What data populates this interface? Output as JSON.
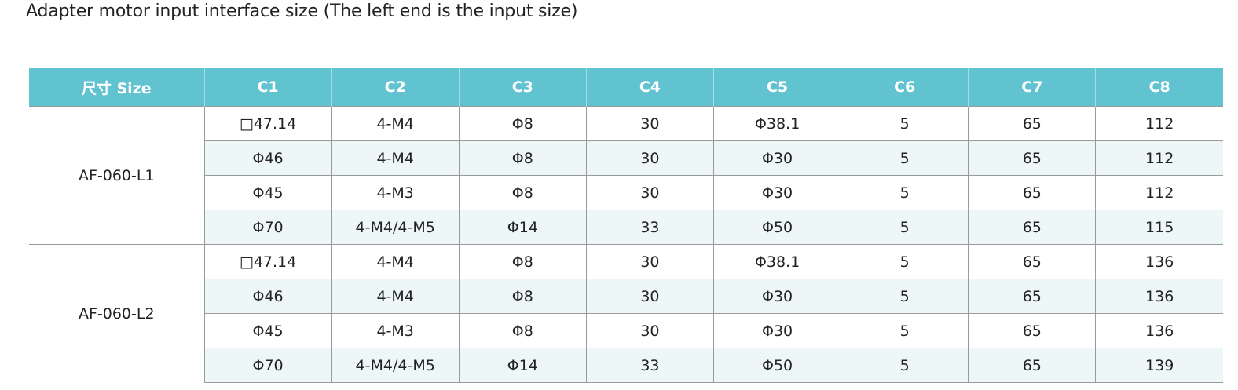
{
  "title": "Adapter motor input interface size (The left end is the input size)",
  "table": {
    "header": [
      "尺寸 Size",
      "C1",
      "C2",
      "C3",
      "C4",
      "C5",
      "C6",
      "C7",
      "C8"
    ],
    "groups": [
      {
        "label": "AF-060-L1",
        "rows": [
          [
            "□47.14",
            "4-M4",
            "Φ8",
            "30",
            "Φ38.1",
            "5",
            "65",
            "112"
          ],
          [
            "Φ46",
            "4-M4",
            "Φ8",
            "30",
            "Φ30",
            "5",
            "65",
            "112"
          ],
          [
            "Φ45",
            "4-M3",
            "Φ8",
            "30",
            "Φ30",
            "5",
            "65",
            "112"
          ],
          [
            "Φ70",
            "4-M4/4-M5",
            "Φ14",
            "33",
            "Φ50",
            "5",
            "65",
            "115"
          ]
        ]
      },
      {
        "label": "AF-060-L2",
        "rows": [
          [
            "□47.14",
            "4-M4",
            "Φ8",
            "30",
            "Φ38.1",
            "5",
            "65",
            "136"
          ],
          [
            "Φ46",
            "4-M4",
            "Φ8",
            "30",
            "Φ30",
            "5",
            "65",
            "136"
          ],
          [
            "Φ45",
            "4-M3",
            "Φ8",
            "30",
            "Φ30",
            "5",
            "65",
            "136"
          ],
          [
            "Φ70",
            "4-M4/4-M5",
            "Φ14",
            "33",
            "Φ50",
            "5",
            "65",
            "139"
          ]
        ]
      }
    ]
  }
}
